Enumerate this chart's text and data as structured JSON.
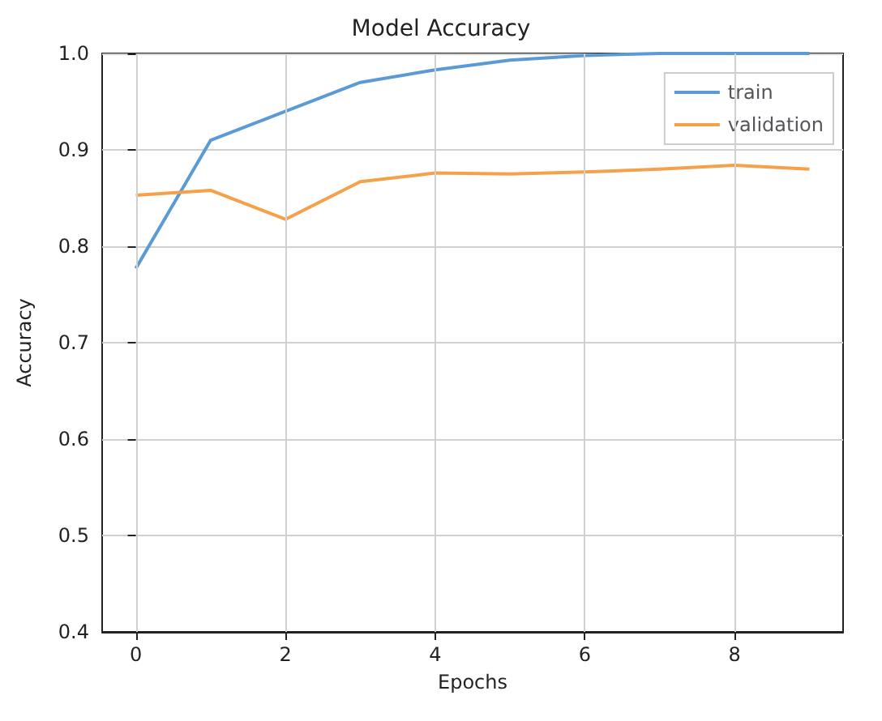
{
  "chart_data": {
    "type": "line",
    "title": "Model Accuracy",
    "xlabel": "Epochs",
    "ylabel": "Accuracy",
    "x": [
      0,
      1,
      2,
      3,
      4,
      5,
      6,
      7,
      8,
      9
    ],
    "series": [
      {
        "name": "train",
        "color": "#5b9bd5",
        "values": [
          0.777,
          0.91,
          0.94,
          0.97,
          0.983,
          0.993,
          0.998,
          1.0,
          1.0,
          1.0
        ]
      },
      {
        "name": "validation",
        "color": "#f5a04a",
        "values": [
          0.853,
          0.858,
          0.828,
          0.867,
          0.876,
          0.875,
          0.877,
          0.88,
          0.884,
          0.88
        ]
      }
    ],
    "xlim": [
      -0.45,
      9.45
    ],
    "xticks": [
      0,
      2,
      4,
      6,
      8
    ],
    "ylim": [
      0.4,
      1.0
    ],
    "yticks": [
      0.4,
      0.5,
      0.6,
      0.7,
      0.8,
      0.9,
      {
        "value": 1,
        "label": "1.0"
      }
    ],
    "grid": true,
    "legend": "top right",
    "marker": "none",
    "line_style": "solid"
  }
}
